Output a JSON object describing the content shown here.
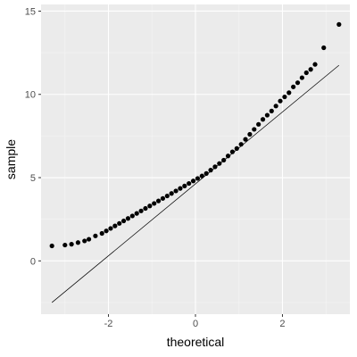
{
  "chart_data": {
    "type": "scatter",
    "title": "",
    "xlabel": "theoretical",
    "ylabel": "sample",
    "xlim": [
      -3.55,
      3.55
    ],
    "ylim": [
      -3.2,
      15.4
    ],
    "x_ticks": [
      -2,
      0,
      2
    ],
    "x_tick_labels": [
      "-2",
      "0",
      "2"
    ],
    "y_ticks": [
      0,
      5,
      10,
      15
    ],
    "y_tick_labels": [
      "0",
      "5",
      "10",
      "15"
    ],
    "grid": true,
    "legend": "none",
    "colors": {
      "panel_background": "#ebebeb",
      "grid_major": "#ffffff",
      "grid_minor": "#f5f5f5",
      "points": "#000000",
      "reference_line": "#000000"
    },
    "reference_line": {
      "x": [
        -3.3,
        3.3
      ],
      "y": [
        -2.5,
        11.75
      ]
    },
    "points": {
      "x": [
        -3.3,
        -3.0,
        -2.85,
        -2.7,
        -2.55,
        -2.45,
        -2.3,
        -2.15,
        -2.05,
        -1.95,
        -1.85,
        -1.75,
        -1.65,
        -1.55,
        -1.45,
        -1.35,
        -1.25,
        -1.15,
        -1.05,
        -0.95,
        -0.85,
        -0.75,
        -0.65,
        -0.55,
        -0.45,
        -0.35,
        -0.25,
        -0.15,
        -0.05,
        0.05,
        0.15,
        0.25,
        0.35,
        0.45,
        0.55,
        0.65,
        0.75,
        0.85,
        0.95,
        1.05,
        1.15,
        1.25,
        1.35,
        1.45,
        1.55,
        1.65,
        1.75,
        1.85,
        1.95,
        2.05,
        2.15,
        2.25,
        2.35,
        2.45,
        2.55,
        2.65,
        2.75,
        2.95,
        3.3
      ],
      "y": [
        0.9,
        0.95,
        1.0,
        1.1,
        1.2,
        1.3,
        1.5,
        1.65,
        1.8,
        1.95,
        2.1,
        2.25,
        2.4,
        2.55,
        2.7,
        2.85,
        3.0,
        3.15,
        3.3,
        3.45,
        3.6,
        3.75,
        3.9,
        4.05,
        4.2,
        4.35,
        4.5,
        4.65,
        4.8,
        4.95,
        5.1,
        5.25,
        5.45,
        5.65,
        5.85,
        6.05,
        6.3,
        6.55,
        6.75,
        7.0,
        7.3,
        7.6,
        7.9,
        8.2,
        8.5,
        8.75,
        9.0,
        9.3,
        9.6,
        9.85,
        10.1,
        10.45,
        10.7,
        11.0,
        11.3,
        11.5,
        11.8,
        12.8,
        14.2
      ]
    }
  }
}
